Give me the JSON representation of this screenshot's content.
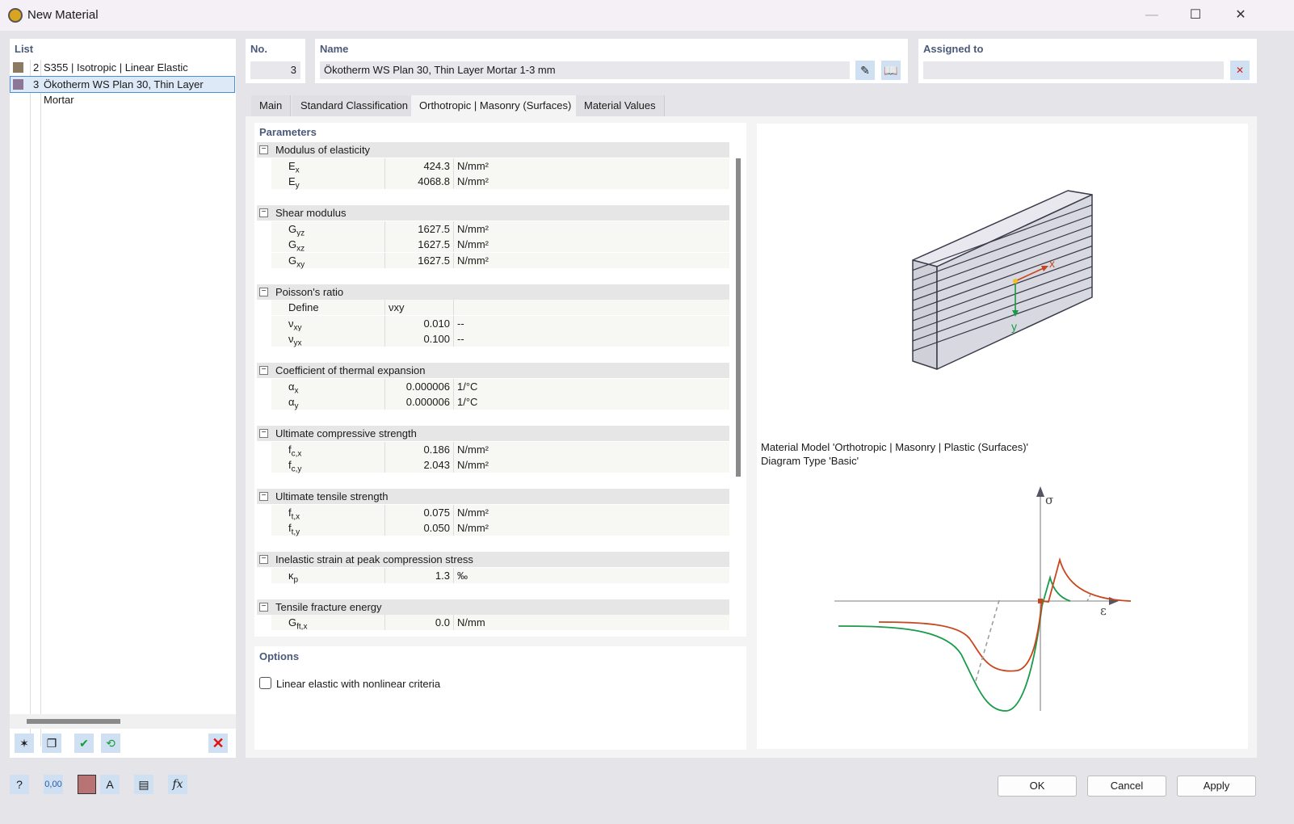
{
  "window": {
    "title": "New Material"
  },
  "list": {
    "header": "List",
    "items": [
      {
        "no": "2",
        "label": "S355 | Isotropic | Linear Elastic",
        "color": "#8c7b62"
      },
      {
        "no": "3",
        "label": "Ökotherm WS Plan 30, Thin Layer Mortar",
        "color": "#8c7896",
        "selected": true
      }
    ]
  },
  "no": {
    "label": "No.",
    "value": "3"
  },
  "name": {
    "label": "Name",
    "value": "Ökotherm WS Plan 30, Thin Layer Mortar 1-3 mm"
  },
  "assigned": {
    "label": "Assigned to",
    "value": ""
  },
  "tabs": [
    {
      "label": "Main"
    },
    {
      "label": "Standard Classification"
    },
    {
      "label": "Orthotropic | Masonry (Surfaces)",
      "active": true
    },
    {
      "label": "Material Values"
    }
  ],
  "parameters": {
    "header": "Parameters",
    "groups": [
      {
        "label": "Modulus of elasticity",
        "rows": [
          {
            "sym": "E",
            "sub": "x",
            "value": "424.3",
            "unit": "N/mm²"
          },
          {
            "sym": "E",
            "sub": "y",
            "value": "4068.8",
            "unit": "N/mm²"
          }
        ]
      },
      {
        "label": "Shear modulus",
        "rows": [
          {
            "sym": "G",
            "sub": "yz",
            "value": "1627.5",
            "unit": "N/mm²"
          },
          {
            "sym": "G",
            "sub": "xz",
            "value": "1627.5",
            "unit": "N/mm²"
          },
          {
            "sym": "G",
            "sub": "xy",
            "value": "1627.5",
            "unit": "N/mm²"
          }
        ]
      },
      {
        "label": "Poisson's ratio",
        "rows": [
          {
            "sym": "Define",
            "sub": "",
            "value": "νxy",
            "unit": "",
            "left": true
          },
          {
            "sym": "ν",
            "sub": "xy",
            "value": "0.010",
            "unit": "--"
          },
          {
            "sym": "ν",
            "sub": "yx",
            "value": "0.100",
            "unit": "--"
          }
        ]
      },
      {
        "label": "Coefficient of thermal expansion",
        "rows": [
          {
            "sym": "α",
            "sub": "x",
            "value": "0.000006",
            "unit": "1/°C"
          },
          {
            "sym": "α",
            "sub": "y",
            "value": "0.000006",
            "unit": "1/°C"
          }
        ]
      },
      {
        "label": "Ultimate compressive strength",
        "rows": [
          {
            "sym": "f",
            "sub": "c,x",
            "value": "0.186",
            "unit": "N/mm²"
          },
          {
            "sym": "f",
            "sub": "c,y",
            "value": "2.043",
            "unit": "N/mm²"
          }
        ]
      },
      {
        "label": "Ultimate tensile strength",
        "rows": [
          {
            "sym": "f",
            "sub": "t,x",
            "value": "0.075",
            "unit": "N/mm²"
          },
          {
            "sym": "f",
            "sub": "t,y",
            "value": "0.050",
            "unit": "N/mm²"
          }
        ]
      },
      {
        "label": "Inelastic strain at peak compression stress",
        "rows": [
          {
            "sym": "κ",
            "sub": "p",
            "value": "1.3",
            "unit": "‰"
          }
        ]
      },
      {
        "label": "Tensile fracture energy",
        "rows": [
          {
            "sym": "G",
            "sub": "ft,x",
            "value": "0.0",
            "unit": "N/mm"
          }
        ]
      }
    ]
  },
  "options": {
    "header": "Options",
    "linear_elastic": {
      "label": "Linear elastic with nonlinear criteria",
      "checked": false
    }
  },
  "diagram": {
    "model_text": "Material Model 'Orthotropic | Masonry | Plastic (Surfaces)'",
    "type_text": "Diagram Type 'Basic'",
    "sigma": "σ",
    "epsilon": "ε",
    "axis_x": "x",
    "axis_y": "y"
  },
  "footer": {
    "ok": "OK",
    "cancel": "Cancel",
    "apply": "Apply",
    "color_swatch": "#b87474"
  }
}
